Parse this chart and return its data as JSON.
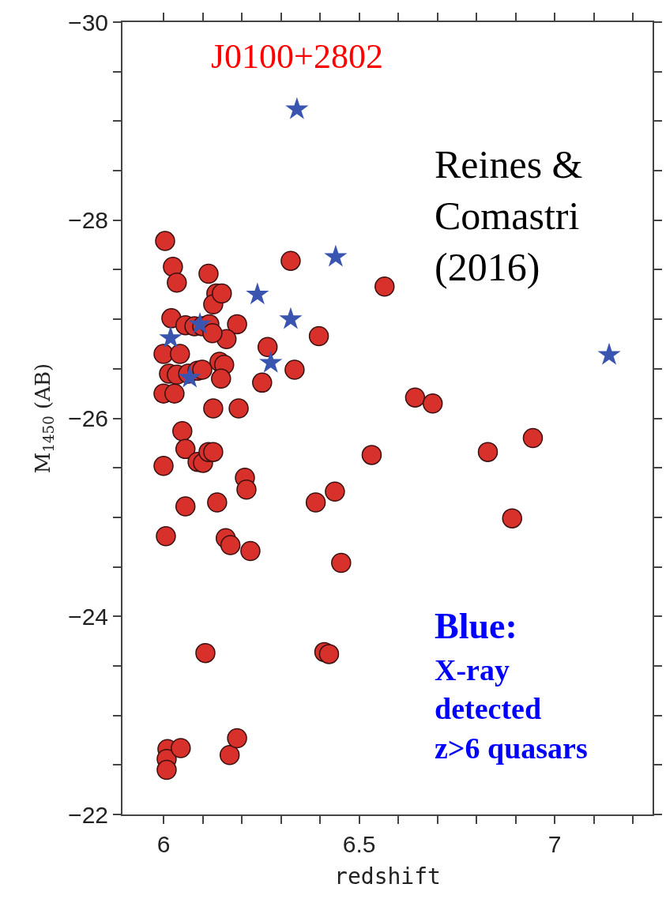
{
  "chart_data": {
    "type": "scatter",
    "xlabel": "redshift",
    "ylabel": "M$_{1450}$ (AB)",
    "xlim": [
      5.895,
      7.25
    ],
    "ylim": [
      -22,
      -30
    ],
    "xticks": [
      6,
      {
        "value": 6.1,
        "label": null
      },
      {
        "value": 6.2,
        "label": null
      },
      {
        "value": 6.3,
        "label": null
      },
      {
        "value": 6.4,
        "label": null
      },
      6.5,
      {
        "value": 6.6,
        "label": null
      },
      {
        "value": 6.7,
        "label": null
      },
      {
        "value": 6.8,
        "label": null
      },
      {
        "value": 6.9,
        "label": null
      },
      7,
      {
        "value": 7.1,
        "label": null
      },
      {
        "value": 7.2,
        "label": null
      }
    ],
    "yticks": [
      -30,
      {
        "value": -29.5,
        "label": null
      },
      {
        "value": -29,
        "label": null
      },
      {
        "value": -28.5,
        "label": null
      },
      -28,
      {
        "value": -27.5,
        "label": null
      },
      {
        "value": -27,
        "label": null
      },
      {
        "value": -26.5,
        "label": null
      },
      -26,
      {
        "value": -25.5,
        "label": null
      },
      {
        "value": -25,
        "label": null
      },
      {
        "value": -24.5,
        "label": null
      },
      -24,
      {
        "value": -23.5,
        "label": null
      },
      {
        "value": -23,
        "label": null
      },
      {
        "value": -22.5,
        "label": null
      },
      -22
    ],
    "series": [
      {
        "color": "#d8302a",
        "marker": "circle",
        "x": [
          6.004,
          6.024,
          6.034,
          6.115,
          6.325,
          6.135,
          6.127,
          6.149,
          6.565,
          6.02,
          6.056,
          6.079,
          6.099,
          6.117,
          6.188,
          6.161,
          6.125,
          6.266,
          6.397,
          6.0,
          6.042,
          6.143,
          6.155,
          6.335,
          6.014,
          6.034,
          6.063,
          6.087,
          6.099,
          6.147,
          6.252,
          6.0,
          6.028,
          6.127,
          6.192,
          6.643,
          6.688,
          6.048,
          6.056,
          6.087,
          6.101,
          6.115,
          6.127,
          6.532,
          6.829,
          6.944,
          6.0,
          6.208,
          6.212,
          6.137,
          6.056,
          6.389,
          6.438,
          6.891,
          6.006,
          6.159,
          6.171,
          6.222,
          6.454,
          6.107,
          6.411,
          6.423,
          6.01,
          6.008,
          6.008,
          6.044,
          6.169,
          6.188
        ],
        "values": [
          -27.79,
          -27.53,
          -27.37,
          -27.46,
          -27.59,
          -27.26,
          -27.15,
          -27.26,
          -27.33,
          -27.01,
          -26.94,
          -26.93,
          -26.93,
          -26.95,
          -26.95,
          -26.8,
          -26.86,
          -26.72,
          -26.83,
          -26.65,
          -26.65,
          -26.57,
          -26.54,
          -26.49,
          -26.45,
          -26.44,
          -26.45,
          -26.48,
          -26.49,
          -26.4,
          -26.36,
          -26.25,
          -26.25,
          -26.1,
          -26.1,
          -26.21,
          -26.15,
          -25.87,
          -25.69,
          -25.56,
          -25.55,
          -25.66,
          -25.66,
          -25.63,
          -25.66,
          -25.8,
          -25.52,
          -25.4,
          -25.28,
          -25.15,
          -25.11,
          -25.15,
          -25.26,
          -24.99,
          -24.81,
          -24.79,
          -24.72,
          -24.66,
          -24.54,
          -23.63,
          -23.64,
          -23.62,
          -22.66,
          -22.56,
          -22.45,
          -22.67,
          -22.6,
          -22.77
        ]
      },
      {
        "color": "#3a55b0",
        "marker": "star",
        "x": [
          6.341,
          6.44,
          6.24,
          6.325,
          6.093,
          6.018,
          6.274,
          6.067,
          7.139
        ],
        "values": [
          -29.12,
          -27.63,
          -27.25,
          -27.0,
          -26.95,
          -26.81,
          -26.56,
          -26.41,
          -26.64
        ]
      }
    ],
    "annotations": [
      {
        "text": "J0100+2802",
        "x": 6.341,
        "y": -29.12
      },
      "Reines &\nComastri\n(2016)",
      "Blue:",
      "X-ray\ndetected\nz>6 quasars"
    ]
  }
}
